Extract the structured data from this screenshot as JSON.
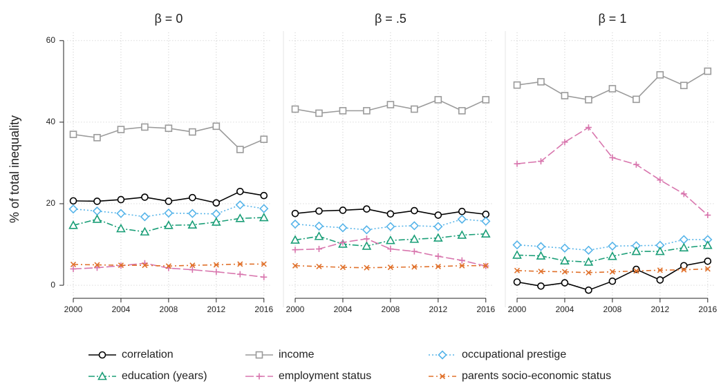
{
  "chart_data": [
    {
      "type": "line",
      "title": "β = 0",
      "ylabel": "% of total inequality",
      "x": [
        2000,
        2002,
        2004,
        2006,
        2008,
        2010,
        2012,
        2014,
        2016
      ],
      "xlim": [
        1999.5,
        2016.5
      ],
      "xticks": [
        2000,
        2004,
        2008,
        2012,
        2016
      ],
      "ylim": [
        -3.2,
        62
      ],
      "yticks": [
        0,
        20,
        40,
        60
      ],
      "grid": true,
      "series": [
        {
          "name": "correlation",
          "color": "#000000",
          "marker": "circle",
          "values": [
            20.7,
            20.6,
            21,
            21.6,
            20.6,
            21.5,
            20.2,
            23,
            22
          ]
        },
        {
          "name": "income",
          "color": "#9a9a9a",
          "marker": "square",
          "values": [
            37,
            36.2,
            38.2,
            38.8,
            38.5,
            37.6,
            39,
            33.3,
            35.8
          ]
        },
        {
          "name": "occupational prestige",
          "color": "#56b4e9",
          "marker": "diamond",
          "values": [
            18.7,
            18.2,
            17.6,
            16.8,
            17.7,
            17.6,
            17.5,
            19.7,
            18.8
          ]
        },
        {
          "name": "education (years)",
          "color": "#1a9e77",
          "marker": "triangle",
          "values": [
            14.7,
            16.2,
            13.9,
            13.1,
            14.7,
            14.8,
            15.5,
            16.4,
            16.6
          ]
        },
        {
          "name": "employment status",
          "color": "#d875ad",
          "marker": "plus",
          "values": [
            4,
            4.3,
            4.8,
            5.4,
            4.2,
            3.8,
            3.3,
            2.7,
            2
          ]
        },
        {
          "name": "parents socio-economic status",
          "color": "#e0702a",
          "marker": "cross",
          "values": [
            5.1,
            5,
            4.9,
            4.9,
            4.7,
            4.9,
            5,
            5.2,
            5.2
          ]
        }
      ]
    },
    {
      "type": "line",
      "title": "β = .5",
      "x": [
        2000,
        2002,
        2004,
        2006,
        2008,
        2010,
        2012,
        2014,
        2016
      ],
      "xlim": [
        1999.5,
        2016.5
      ],
      "xticks": [
        2000,
        2004,
        2008,
        2012,
        2016
      ],
      "ylim": [
        -3.2,
        62
      ],
      "yticks": [
        0,
        20,
        40,
        60
      ],
      "grid": true,
      "series": [
        {
          "name": "correlation",
          "color": "#000000",
          "marker": "circle",
          "values": [
            17.6,
            18.2,
            18.4,
            18.7,
            17.5,
            18.3,
            17.2,
            18.1,
            17.4
          ]
        },
        {
          "name": "income",
          "color": "#9a9a9a",
          "marker": "square",
          "values": [
            43.2,
            42.2,
            42.8,
            42.8,
            44.3,
            43.2,
            45.5,
            42.8,
            45.5
          ]
        },
        {
          "name": "occupational prestige",
          "color": "#56b4e9",
          "marker": "diamond",
          "values": [
            15,
            14.5,
            14.1,
            13.6,
            14.4,
            14.6,
            14.4,
            16.2,
            15.7
          ]
        },
        {
          "name": "education (years)",
          "color": "#1a9e77",
          "marker": "triangle",
          "values": [
            11.1,
            12,
            10.1,
            9.6,
            11,
            11.3,
            11.6,
            12.3,
            12.6
          ]
        },
        {
          "name": "employment status",
          "color": "#d875ad",
          "marker": "plus",
          "values": [
            8.7,
            8.9,
            10.5,
            11.4,
            8.9,
            8.3,
            7.1,
            6.1,
            4.7
          ]
        },
        {
          "name": "parents socio-economic status",
          "color": "#e0702a",
          "marker": "cross",
          "values": [
            4.8,
            4.6,
            4.4,
            4.3,
            4.4,
            4.5,
            4.6,
            4.8,
            4.8
          ]
        }
      ]
    },
    {
      "type": "line",
      "title": "β = 1",
      "x": [
        2000,
        2002,
        2004,
        2006,
        2008,
        2010,
        2012,
        2014,
        2016
      ],
      "xlim": [
        1999.5,
        2016.5
      ],
      "xticks": [
        2000,
        2004,
        2008,
        2012,
        2016
      ],
      "ylim": [
        -3.2,
        62
      ],
      "yticks": [
        0,
        20,
        40,
        60
      ],
      "grid": true,
      "series": [
        {
          "name": "correlation",
          "color": "#000000",
          "marker": "circle",
          "values": [
            0.8,
            -0.2,
            0.6,
            -1.2,
            1,
            3.9,
            1.3,
            4.8,
            5.9
          ]
        },
        {
          "name": "income",
          "color": "#9a9a9a",
          "marker": "square",
          "values": [
            49.1,
            49.9,
            46.5,
            45.5,
            48.2,
            45.6,
            51.6,
            49,
            52.5
          ]
        },
        {
          "name": "occupational prestige",
          "color": "#56b4e9",
          "marker": "diamond",
          "values": [
            9.9,
            9.5,
            9.1,
            8.6,
            9.6,
            9.7,
            9.8,
            11.2,
            11.2
          ]
        },
        {
          "name": "education (years)",
          "color": "#1a9e77",
          "marker": "triangle",
          "values": [
            7.4,
            7.2,
            6,
            5.7,
            7.1,
            8.3,
            8.3,
            9.2,
            9.8
          ]
        },
        {
          "name": "employment status",
          "color": "#d875ad",
          "marker": "plus",
          "values": [
            29.8,
            30.4,
            35.1,
            38.7,
            31.3,
            29.6,
            25.8,
            22.4,
            17.2
          ]
        },
        {
          "name": "parents socio-economic status",
          "color": "#e0702a",
          "marker": "cross",
          "values": [
            3.6,
            3.4,
            3.3,
            3.1,
            3.3,
            3.5,
            3.7,
            3.8,
            4
          ]
        }
      ]
    }
  ]
}
